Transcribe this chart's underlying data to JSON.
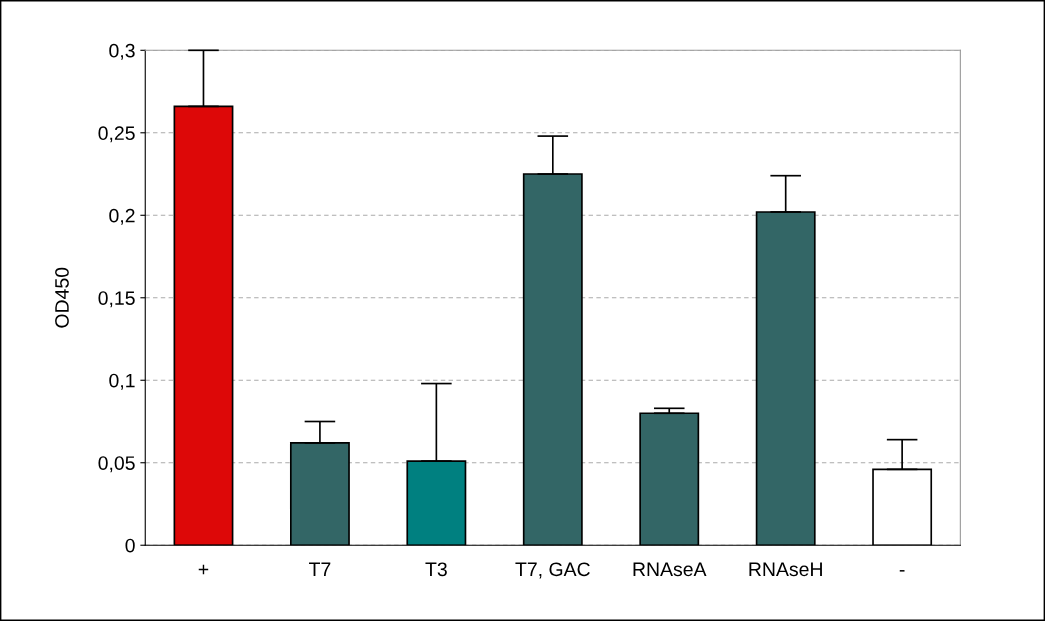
{
  "chart_data": {
    "type": "bar",
    "ylabel": "OD450",
    "categories": [
      "+",
      "T7",
      "T3",
      "T7, GAC",
      "RNAseA",
      "RNAseH",
      "-"
    ],
    "values": [
      0.266,
      0.062,
      0.051,
      0.225,
      0.08,
      0.202,
      0.046
    ],
    "colors": [
      "#dd0808",
      "#336666",
      "#008080",
      "#336666",
      "#336666",
      "#336666",
      "#ffffff"
    ],
    "errors": [
      [
        0.266,
        0.3
      ],
      [
        0.062,
        0.075
      ],
      [
        0.051,
        0.098
      ],
      [
        0.225,
        0.248
      ],
      [
        0.08,
        0.083
      ],
      [
        0.202,
        0.224
      ],
      [
        0.046,
        0.064
      ]
    ],
    "ylim": [
      0,
      0.3
    ],
    "yticks": [
      {
        "value": 0,
        "label": "0"
      },
      {
        "value": 0.05,
        "label": "0,05"
      },
      {
        "value": 0.1,
        "label": "0,1"
      },
      {
        "value": 0.15,
        "label": "0,15"
      },
      {
        "value": 0.2,
        "label": "0,2"
      },
      {
        "value": 0.25,
        "label": "0,25"
      },
      {
        "value": 0.3,
        "label": "0,3"
      }
    ],
    "grid": "y",
    "legend": false
  }
}
